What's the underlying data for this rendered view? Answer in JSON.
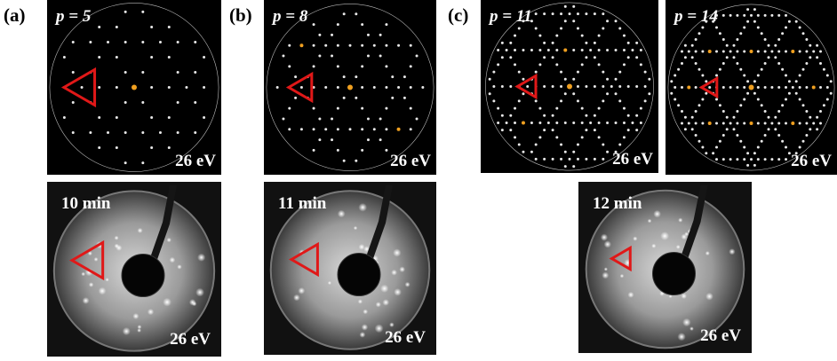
{
  "panels": [
    {
      "label": "(a)",
      "simulations": [
        {
          "title": "p = 5",
          "energy": "26 eV"
        }
      ],
      "photos": [
        {
          "time": "10 min",
          "energy": "26 eV"
        }
      ]
    },
    {
      "label": "(b)",
      "simulations": [
        {
          "title": "p = 8",
          "energy": "26 eV"
        }
      ],
      "photos": [
        {
          "time": "11 min",
          "energy": "26 eV"
        }
      ]
    },
    {
      "label": "(c)",
      "simulations": [
        {
          "title": "p = 11",
          "energy": "26 eV"
        },
        {
          "title": "p = 14",
          "energy": "26 eV"
        }
      ],
      "photos": [
        {
          "time": "12 min",
          "energy": "26 eV"
        }
      ]
    }
  ]
}
